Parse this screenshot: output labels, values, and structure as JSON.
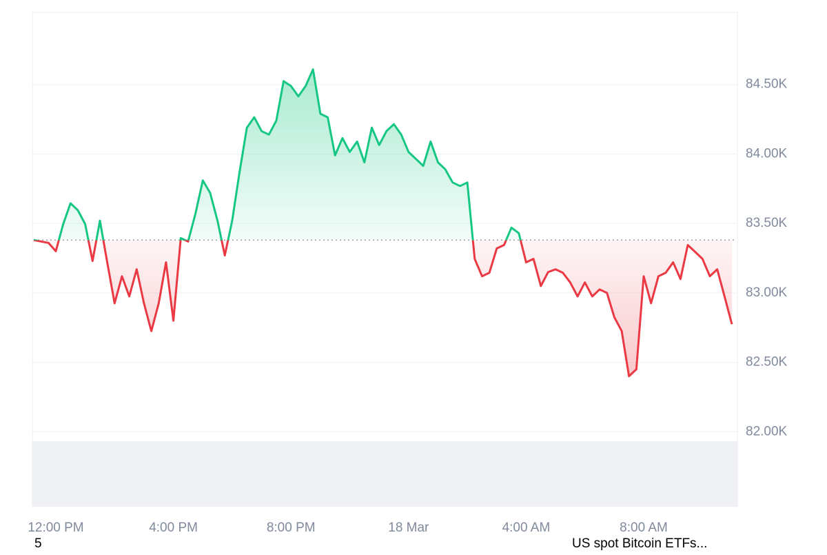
{
  "chart_data": {
    "type": "line",
    "categories": [
      null,
      null,
      null,
      "12:00 PM",
      null,
      null,
      null,
      null,
      null,
      null,
      null,
      null,
      null,
      null,
      null,
      null,
      null,
      null,
      null,
      "4:00 PM",
      null,
      null,
      null,
      null,
      null,
      null,
      null,
      null,
      null,
      null,
      null,
      null,
      null,
      null,
      null,
      "8:00 PM",
      null,
      null,
      null,
      null,
      null,
      null,
      null,
      null,
      null,
      null,
      null,
      null,
      null,
      null,
      null,
      "18 Mar",
      null,
      null,
      null,
      null,
      null,
      null,
      null,
      null,
      null,
      null,
      null,
      null,
      null,
      null,
      null,
      "4:00 AM",
      null,
      null,
      null,
      null,
      null,
      null,
      null,
      null,
      null,
      null,
      null,
      null,
      null,
      null,
      null,
      "8:00 AM",
      null,
      null,
      null,
      null,
      null,
      null,
      null,
      null,
      null,
      null,
      null,
      null
    ],
    "values": [
      83381,
      83370,
      83360,
      83300,
      83495,
      83645,
      83595,
      83495,
      83230,
      83520,
      83220,
      82925,
      83120,
      82975,
      83170,
      82925,
      82725,
      82925,
      83220,
      82800,
      83395,
      83370,
      83570,
      83810,
      83720,
      83520,
      83270,
      83520,
      83870,
      84190,
      84265,
      84165,
      84140,
      84240,
      84525,
      84490,
      84415,
      84490,
      84610,
      84290,
      84265,
      83990,
      84115,
      84015,
      84090,
      83940,
      84190,
      84065,
      84165,
      84215,
      84140,
      84015,
      83965,
      83915,
      84090,
      83940,
      83890,
      83795,
      83770,
      83795,
      83245,
      83120,
      83145,
      83320,
      83345,
      83470,
      83430,
      83220,
      83245,
      83050,
      83150,
      83170,
      83145,
      83075,
      82975,
      83075,
      82975,
      83025,
      83000,
      82825,
      82725,
      82400,
      82450,
      83120,
      82925,
      83120,
      83145,
      83220,
      83100,
      83345,
      83295,
      83245,
      83120,
      83170,
      82975,
      82775
    ],
    "baseline": 83380,
    "up_color": "#16c784",
    "down_color": "#ea3943",
    "ylim": [
      81460,
      85020
    ],
    "yticks": [
      {
        "value": 82000,
        "label": "82.00K"
      },
      {
        "value": 82500,
        "label": "82.50K"
      },
      {
        "value": 83000,
        "label": "83.00K"
      },
      {
        "value": 83500,
        "label": "83.50K"
      },
      {
        "value": 84000,
        "label": "84.00K"
      },
      {
        "value": 84500,
        "label": "84.50K"
      }
    ],
    "grid": true,
    "annotations": [
      "5",
      "US spot Bitcoin ETFs..."
    ]
  }
}
